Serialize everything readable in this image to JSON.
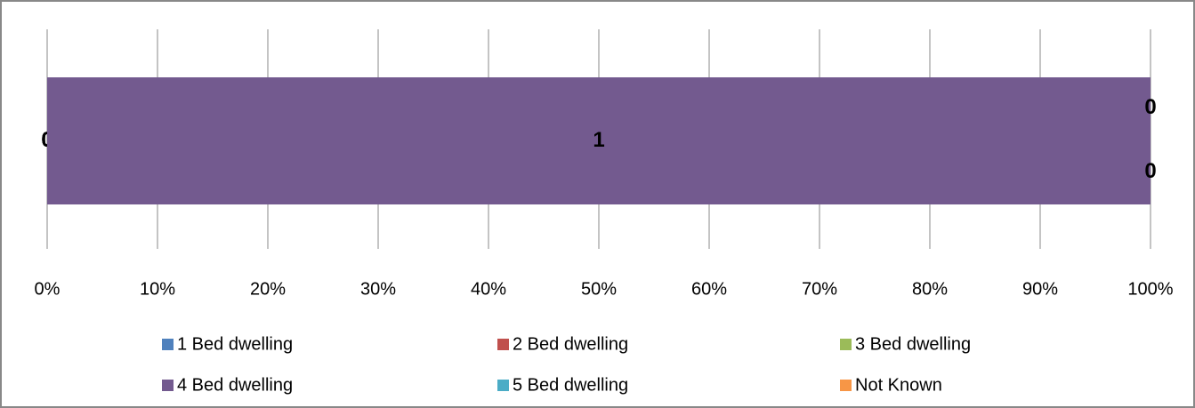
{
  "chart_data": {
    "type": "bar",
    "orientation": "horizontal",
    "stacking": "percent",
    "categories": [
      null
    ],
    "series": [
      {
        "name": "1 Bed dwelling",
        "color": "#4f81bd",
        "values": [
          0
        ]
      },
      {
        "name": "2 Bed dwelling",
        "color": "#c0504d",
        "values": [
          0
        ]
      },
      {
        "name": "3 Bed dwelling",
        "color": "#9bbb59",
        "values": [
          0
        ]
      },
      {
        "name": "4 Bed dwelling",
        "color": "#735a8f",
        "values": [
          1
        ]
      },
      {
        "name": "5 Bed dwelling",
        "color": "#4bacc6",
        "values": [
          0
        ]
      },
      {
        "name": "Not Known",
        "color": "#f79646",
        "values": [
          0
        ]
      }
    ],
    "xlim": [
      0,
      100
    ],
    "xticks": [
      {
        "value": 0,
        "label": "0%"
      },
      {
        "value": 10,
        "label": "10%"
      },
      {
        "value": 20,
        "label": "20%"
      },
      {
        "value": 30,
        "label": "30%"
      },
      {
        "value": 40,
        "label": "40%"
      },
      {
        "value": 50,
        "label": "50%"
      },
      {
        "value": 60,
        "label": "60%"
      },
      {
        "value": 70,
        "label": "70%"
      },
      {
        "value": 80,
        "label": "80%"
      },
      {
        "value": 90,
        "label": "90%"
      },
      {
        "value": 100,
        "label": "100%"
      }
    ],
    "grid": true,
    "legend": "bottom"
  }
}
